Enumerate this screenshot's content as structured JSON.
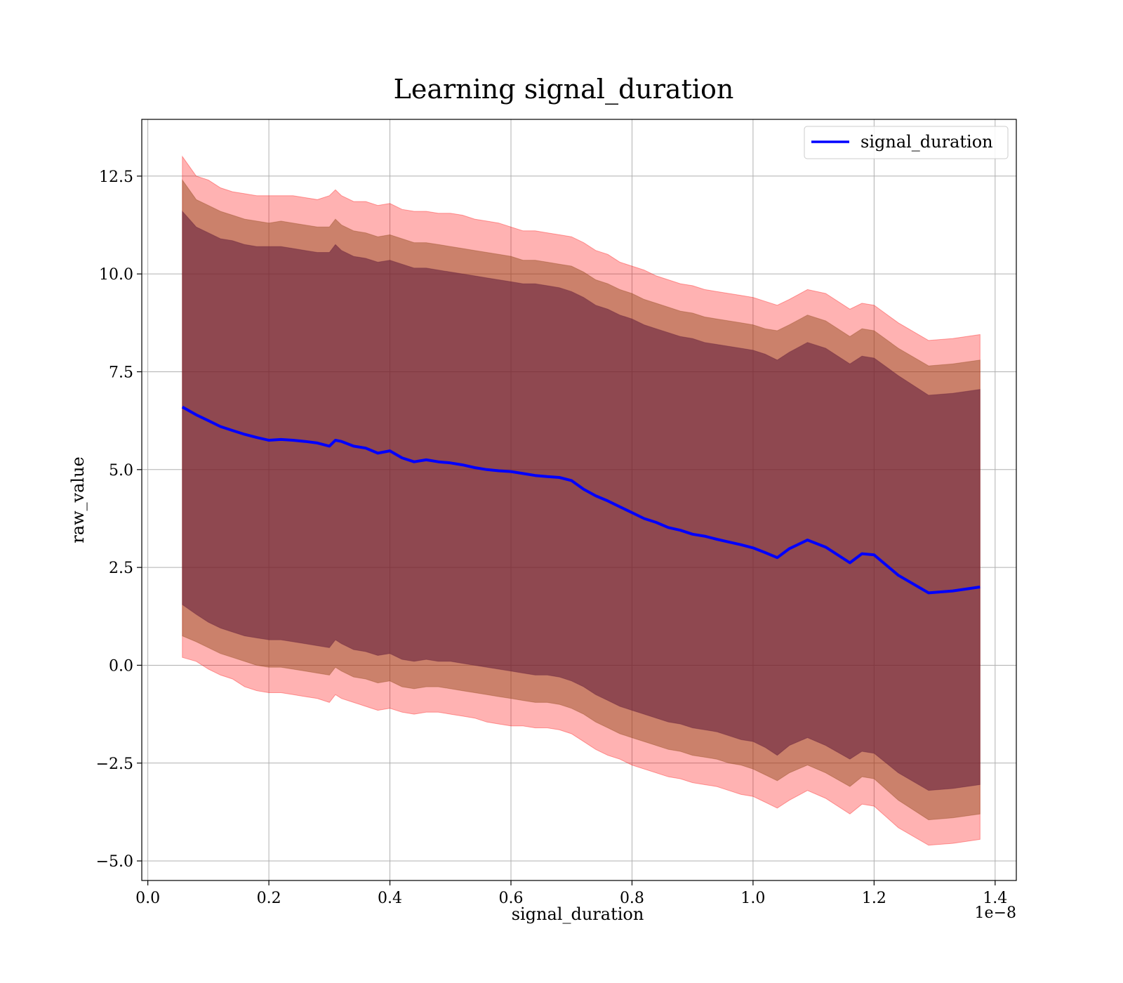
{
  "chart_data": {
    "type": "line",
    "title": "Learning signal_duration",
    "xlabel": "signal_duration",
    "ylabel": "raw_value",
    "x_offset_label": "1e−8",
    "xlim": [
      -0.01,
      1.435
    ],
    "ylim": [
      -5.5,
      13.95
    ],
    "x_ticks": [
      0.0,
      0.2,
      0.4,
      0.6,
      0.8,
      1.0,
      1.2,
      1.4
    ],
    "x_tick_labels": [
      "0.0",
      "0.2",
      "0.4",
      "0.6",
      "0.8",
      "1.0",
      "1.2",
      "1.4"
    ],
    "y_ticks": [
      -5.0,
      -2.5,
      0.0,
      2.5,
      5.0,
      7.5,
      10.0,
      12.5
    ],
    "y_tick_labels": [
      "−5.0",
      "−2.5",
      "0.0",
      "2.5",
      "5.0",
      "7.5",
      "10.0",
      "12.5"
    ],
    "grid": true,
    "legend": {
      "position": "top-right",
      "entries": [
        "signal_duration"
      ]
    },
    "colors": {
      "line": "#0000ff",
      "band_outer": "#ff0000",
      "band_middle": "#8b4513",
      "band_inner": "#5e1a3a"
    },
    "x": [
      0.057,
      0.08,
      0.1,
      0.12,
      0.14,
      0.16,
      0.18,
      0.2,
      0.22,
      0.24,
      0.26,
      0.28,
      0.3,
      0.31,
      0.32,
      0.34,
      0.36,
      0.38,
      0.4,
      0.42,
      0.44,
      0.46,
      0.48,
      0.5,
      0.52,
      0.54,
      0.56,
      0.58,
      0.6,
      0.62,
      0.64,
      0.66,
      0.68,
      0.7,
      0.72,
      0.74,
      0.76,
      0.78,
      0.8,
      0.82,
      0.84,
      0.86,
      0.88,
      0.9,
      0.92,
      0.94,
      0.96,
      0.98,
      1.0,
      1.02,
      1.04,
      1.06,
      1.09,
      1.12,
      1.16,
      1.18,
      1.2,
      1.24,
      1.29,
      1.33,
      1.375
    ],
    "series": [
      {
        "name": "signal_duration",
        "values": [
          6.6,
          6.4,
          6.25,
          6.1,
          6.0,
          5.9,
          5.82,
          5.75,
          5.77,
          5.75,
          5.72,
          5.68,
          5.6,
          5.75,
          5.72,
          5.6,
          5.55,
          5.42,
          5.48,
          5.3,
          5.2,
          5.25,
          5.2,
          5.17,
          5.12,
          5.05,
          5.0,
          4.97,
          4.95,
          4.9,
          4.85,
          4.82,
          4.8,
          4.72,
          4.5,
          4.33,
          4.2,
          4.05,
          3.9,
          3.75,
          3.65,
          3.52,
          3.45,
          3.35,
          3.3,
          3.22,
          3.15,
          3.08,
          3.0,
          2.88,
          2.75,
          2.98,
          3.2,
          3.02,
          2.62,
          2.85,
          2.82,
          2.3,
          1.85,
          1.9,
          2.0
        ]
      }
    ],
    "bands": [
      {
        "upper": [
          13.0,
          12.5,
          12.4,
          12.2,
          12.1,
          12.05,
          12.0,
          12.0,
          12.0,
          12.0,
          11.95,
          11.9,
          12.0,
          12.15,
          12.0,
          11.85,
          11.85,
          11.75,
          11.8,
          11.65,
          11.6,
          11.6,
          11.55,
          11.55,
          11.5,
          11.4,
          11.35,
          11.3,
          11.2,
          11.1,
          11.1,
          11.05,
          11.0,
          10.95,
          10.8,
          10.6,
          10.5,
          10.3,
          10.2,
          10.1,
          9.95,
          9.85,
          9.75,
          9.7,
          9.6,
          9.55,
          9.5,
          9.45,
          9.4,
          9.3,
          9.2,
          9.35,
          9.6,
          9.5,
          9.1,
          9.25,
          9.2,
          8.75,
          8.3,
          8.35,
          8.45
        ],
        "lower": [
          0.2,
          0.1,
          -0.1,
          -0.25,
          -0.35,
          -0.55,
          -0.65,
          -0.7,
          -0.7,
          -0.75,
          -0.8,
          -0.85,
          -0.95,
          -0.75,
          -0.85,
          -0.95,
          -1.05,
          -1.15,
          -1.1,
          -1.2,
          -1.25,
          -1.2,
          -1.2,
          -1.25,
          -1.3,
          -1.35,
          -1.45,
          -1.5,
          -1.55,
          -1.55,
          -1.6,
          -1.6,
          -1.65,
          -1.75,
          -1.95,
          -2.15,
          -2.3,
          -2.4,
          -2.55,
          -2.65,
          -2.75,
          -2.85,
          -2.9,
          -3.0,
          -3.05,
          -3.1,
          -3.2,
          -3.3,
          -3.35,
          -3.5,
          -3.65,
          -3.45,
          -3.2,
          -3.4,
          -3.8,
          -3.55,
          -3.6,
          -4.15,
          -4.6,
          -4.55,
          -4.45
        ]
      },
      {
        "upper": [
          12.4,
          11.9,
          11.75,
          11.6,
          11.5,
          11.4,
          11.35,
          11.3,
          11.35,
          11.3,
          11.25,
          11.2,
          11.2,
          11.4,
          11.25,
          11.1,
          11.05,
          10.95,
          11.0,
          10.9,
          10.8,
          10.8,
          10.75,
          10.7,
          10.65,
          10.6,
          10.55,
          10.5,
          10.45,
          10.35,
          10.35,
          10.3,
          10.25,
          10.2,
          10.05,
          9.85,
          9.75,
          9.6,
          9.5,
          9.35,
          9.25,
          9.15,
          9.05,
          9.0,
          8.9,
          8.85,
          8.8,
          8.75,
          8.7,
          8.6,
          8.55,
          8.7,
          8.95,
          8.8,
          8.4,
          8.6,
          8.55,
          8.1,
          7.65,
          7.7,
          7.8
        ],
        "lower": [
          0.75,
          0.6,
          0.45,
          0.3,
          0.2,
          0.1,
          0.0,
          -0.05,
          -0.05,
          -0.1,
          -0.15,
          -0.2,
          -0.25,
          -0.05,
          -0.15,
          -0.3,
          -0.35,
          -0.45,
          -0.4,
          -0.55,
          -0.6,
          -0.55,
          -0.55,
          -0.6,
          -0.65,
          -0.7,
          -0.75,
          -0.8,
          -0.85,
          -0.9,
          -0.95,
          -0.95,
          -1.0,
          -1.1,
          -1.25,
          -1.45,
          -1.6,
          -1.75,
          -1.85,
          -1.95,
          -2.05,
          -2.15,
          -2.2,
          -2.3,
          -2.35,
          -2.4,
          -2.5,
          -2.55,
          -2.65,
          -2.8,
          -2.95,
          -2.75,
          -2.55,
          -2.75,
          -3.1,
          -2.85,
          -2.9,
          -3.45,
          -3.95,
          -3.9,
          -3.8
        ]
      },
      {
        "upper": [
          11.6,
          11.2,
          11.05,
          10.9,
          10.85,
          10.75,
          10.7,
          10.7,
          10.7,
          10.65,
          10.6,
          10.55,
          10.55,
          10.75,
          10.6,
          10.45,
          10.4,
          10.3,
          10.35,
          10.25,
          10.15,
          10.15,
          10.1,
          10.05,
          10.0,
          9.95,
          9.9,
          9.85,
          9.8,
          9.75,
          9.75,
          9.7,
          9.65,
          9.55,
          9.4,
          9.2,
          9.1,
          8.95,
          8.85,
          8.7,
          8.6,
          8.5,
          8.4,
          8.35,
          8.25,
          8.2,
          8.15,
          8.1,
          8.05,
          7.95,
          7.8,
          8.0,
          8.25,
          8.1,
          7.7,
          7.9,
          7.85,
          7.4,
          6.9,
          6.95,
          7.05
        ],
        "lower": [
          1.55,
          1.3,
          1.1,
          0.95,
          0.85,
          0.75,
          0.7,
          0.65,
          0.65,
          0.6,
          0.55,
          0.5,
          0.45,
          0.65,
          0.55,
          0.4,
          0.35,
          0.25,
          0.3,
          0.15,
          0.1,
          0.15,
          0.1,
          0.1,
          0.05,
          0.0,
          -0.05,
          -0.1,
          -0.15,
          -0.2,
          -0.25,
          -0.25,
          -0.3,
          -0.4,
          -0.55,
          -0.75,
          -0.9,
          -1.05,
          -1.15,
          -1.25,
          -1.35,
          -1.45,
          -1.5,
          -1.6,
          -1.65,
          -1.7,
          -1.8,
          -1.9,
          -1.95,
          -2.1,
          -2.3,
          -2.05,
          -1.85,
          -2.05,
          -2.4,
          -2.2,
          -2.25,
          -2.75,
          -3.2,
          -3.15,
          -3.05
        ]
      }
    ]
  }
}
